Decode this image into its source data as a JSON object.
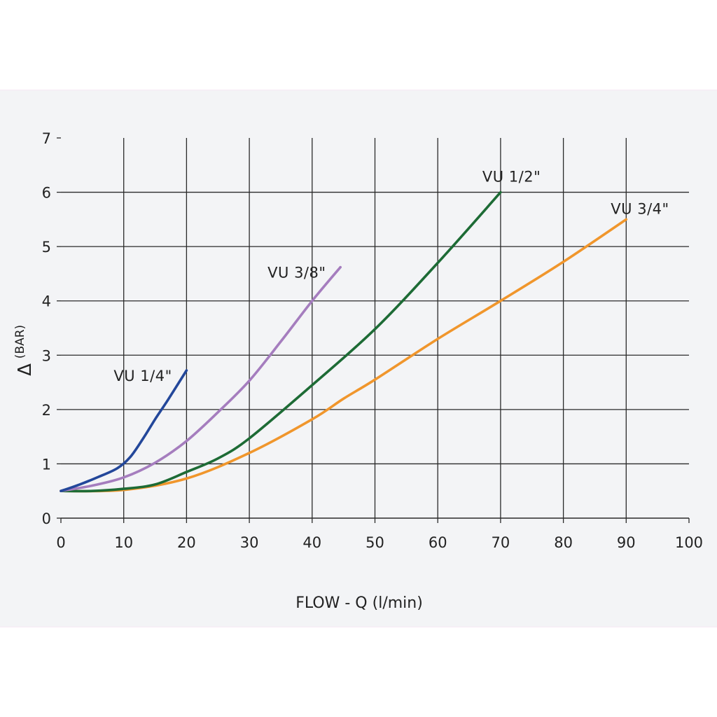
{
  "chart_data": {
    "type": "line",
    "title": "",
    "xlabel": "FLOW - Q (l/min)",
    "ylabel_symbol": "Δ",
    "ylabel": "(BAR)",
    "xlim": [
      0,
      100
    ],
    "ylim": [
      0,
      7
    ],
    "x_ticks": [
      "0",
      "10",
      "20",
      "30",
      "40",
      "50",
      "60",
      "70",
      "80",
      "90",
      "100"
    ],
    "y_ticks": [
      "0",
      "1",
      "2",
      "3",
      "4",
      "5",
      "6",
      "7"
    ],
    "grid": true,
    "legend": "inline labels at line ends",
    "series": [
      {
        "name": "VU 1/4\"",
        "color": "#23479a",
        "x": [
          0,
          3,
          6,
          9,
          11,
          13,
          15,
          17,
          20
        ],
        "y": [
          0.5,
          0.62,
          0.76,
          0.92,
          1.12,
          1.45,
          1.82,
          2.17,
          2.72
        ]
      },
      {
        "name": "VU 3/8\"",
        "color": "#a57dbe",
        "x": [
          0,
          5,
          10,
          15,
          20,
          25,
          30,
          35,
          40,
          44.5
        ],
        "y": [
          0.5,
          0.6,
          0.75,
          1.02,
          1.42,
          1.95,
          2.53,
          3.25,
          4.0,
          4.62
        ]
      },
      {
        "name": "VU 1/2\"",
        "color": "#1d6b35",
        "x": [
          0,
          5,
          10,
          15,
          20,
          25,
          30,
          40,
          50,
          60,
          70
        ],
        "y": [
          0.5,
          0.5,
          0.54,
          0.62,
          0.85,
          1.1,
          1.47,
          2.45,
          3.48,
          4.7,
          6.0
        ]
      },
      {
        "name": "VU 3/4\"",
        "color": "#f0962c",
        "x": [
          0,
          10,
          20,
          30,
          40,
          45,
          50,
          60,
          70,
          80,
          90
        ],
        "y": [
          0.5,
          0.52,
          0.73,
          1.2,
          1.82,
          2.2,
          2.55,
          3.3,
          4.0,
          4.72,
          5.5
        ]
      }
    ]
  }
}
